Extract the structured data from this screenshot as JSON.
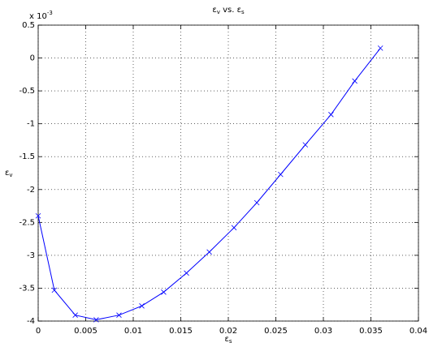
{
  "chart_data": {
    "type": "line",
    "title": [
      "ε",
      "v",
      " vs. ε",
      "s"
    ],
    "xlabel": [
      "ε",
      "s"
    ],
    "ylabel": [
      "ε",
      "v"
    ],
    "y_multiplier": {
      "base": "x 10",
      "exponent": "-3"
    },
    "x": [
      0,
      0.0017,
      0.0039,
      0.0061,
      0.0085,
      0.0109,
      0.0132,
      0.0156,
      0.018,
      0.0206,
      0.023,
      0.0255,
      0.0281,
      0.0308,
      0.0333,
      0.036
    ],
    "series": [
      {
        "color": "#0000ff",
        "marker": "x",
        "values": [
          -2.4,
          -3.53,
          -3.91,
          -3.98,
          -3.91,
          -3.77,
          -3.56,
          -3.27,
          -2.95,
          -2.58,
          -2.2,
          -1.77,
          -1.32,
          -0.86,
          -0.35,
          0.15
        ]
      }
    ],
    "xlim": [
      0,
      0.04
    ],
    "ylim": [
      -4,
      0.5
    ],
    "xticks": [
      0,
      0.005,
      0.01,
      0.015,
      0.02,
      0.025,
      0.03,
      0.035,
      0.04
    ],
    "yticks": [
      0.5,
      0,
      -0.5,
      -1,
      -1.5,
      -2,
      -2.5,
      -3,
      -3.5,
      -4
    ],
    "grid": true
  }
}
